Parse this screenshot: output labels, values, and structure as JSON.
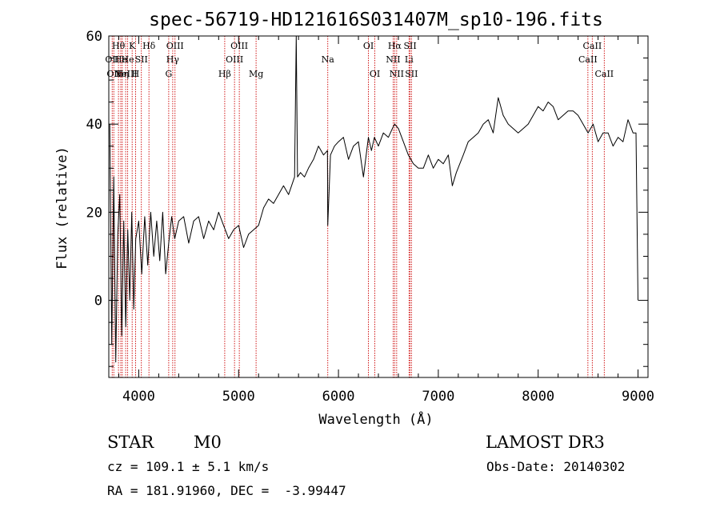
{
  "chart_data": {
    "type": "line",
    "title": "spec-56719-HD121616S031407M_sp10-196.fits",
    "xlabel": "Wavelength (Å)",
    "ylabel": "Flux (relative)",
    "xlim": [
      3700,
      9100
    ],
    "ylim": [
      -17.5,
      60
    ],
    "xticks": [
      {
        "value": 4000,
        "label": "4000"
      },
      {
        "value": 5000,
        "label": "5000"
      },
      {
        "value": 6000,
        "label": "6000"
      },
      {
        "value": 7000,
        "label": "7000"
      },
      {
        "value": 8000,
        "label": "8000"
      },
      {
        "value": 9000,
        "label": "9000"
      }
    ],
    "yticks": [
      {
        "value": 0,
        "label": "0"
      },
      {
        "value": 20,
        "label": "20"
      },
      {
        "value": 40,
        "label": "40"
      },
      {
        "value": 60,
        "label": "60"
      }
    ],
    "grid": false,
    "series": [
      {
        "name": "flux",
        "color": "#000000",
        "x": [
          3710,
          3730,
          3750,
          3770,
          3790,
          3810,
          3830,
          3850,
          3870,
          3890,
          3910,
          3930,
          3950,
          3970,
          4000,
          4030,
          4060,
          4090,
          4120,
          4150,
          4180,
          4210,
          4240,
          4270,
          4300,
          4330,
          4360,
          4400,
          4450,
          4500,
          4550,
          4600,
          4650,
          4700,
          4750,
          4800,
          4850,
          4900,
          4950,
          5000,
          5050,
          5100,
          5150,
          5200,
          5250,
          5300,
          5350,
          5400,
          5450,
          5500,
          5560,
          5577,
          5590,
          5620,
          5660,
          5700,
          5750,
          5800,
          5850,
          5890,
          5893,
          5920,
          5960,
          6000,
          6050,
          6100,
          6150,
          6200,
          6250,
          6300,
          6330,
          6360,
          6400,
          6450,
          6500,
          6540,
          6563,
          6600,
          6650,
          6700,
          6750,
          6800,
          6850,
          6900,
          6950,
          7000,
          7050,
          7100,
          7140,
          7180,
          7250,
          7300,
          7350,
          7400,
          7450,
          7500,
          7550,
          7600,
          7650,
          7700,
          7750,
          7800,
          7850,
          7900,
          7950,
          8000,
          8050,
          8100,
          8150,
          8200,
          8250,
          8300,
          8350,
          8400,
          8450,
          8500,
          8550,
          8600,
          8650,
          8700,
          8750,
          8800,
          8850,
          8900,
          8950,
          8980,
          9000
        ],
        "values": [
          40,
          -10,
          28,
          -14,
          15,
          24,
          -8,
          18,
          -6,
          16,
          0,
          20,
          -2,
          14,
          18,
          6,
          19,
          8,
          20,
          10,
          18,
          9,
          20,
          6,
          13,
          19,
          14,
          18,
          19,
          13,
          18,
          19,
          14,
          18,
          16,
          20,
          17,
          14,
          16,
          17,
          12,
          15,
          16,
          17,
          21,
          23,
          22,
          24,
          26,
          24,
          28,
          60,
          28,
          29,
          28,
          30,
          32,
          35,
          33,
          34,
          17,
          33,
          35,
          36,
          37,
          32,
          35,
          36,
          28,
          37,
          34,
          37,
          35,
          38,
          37,
          39,
          40,
          39,
          36,
          33,
          31,
          30,
          30,
          33,
          30,
          32,
          31,
          33,
          26,
          29,
          33,
          36,
          37,
          38,
          40,
          41,
          38,
          46,
          42,
          40,
          39,
          38,
          39,
          40,
          42,
          44,
          43,
          45,
          44,
          41,
          42,
          43,
          43,
          42,
          40,
          38,
          40,
          36,
          38,
          38,
          35,
          37,
          36,
          41,
          38,
          38,
          0
        ]
      }
    ],
    "line_label_color": "#cc0000",
    "lines": [
      {
        "wl": 3734,
        "text": "OII",
        "row": 2
      },
      {
        "wl": 3750,
        "text": "OII",
        "row": 3
      },
      {
        "wl": 3797,
        "text": "Hθ",
        "row": 1
      },
      {
        "wl": 3820,
        "text": "He",
        "row": 2
      },
      {
        "wl": 3835,
        "text": "Hη",
        "row": 3
      },
      {
        "wl": 3869,
        "text": "NeIII",
        "row": 3
      },
      {
        "wl": 3889,
        "text": "He",
        "row": 2
      },
      {
        "wl": 3934,
        "text": "K",
        "row": 1
      },
      {
        "wl": 3968,
        "text": "H",
        "row": 3
      },
      {
        "wl": 4026,
        "text": "SII",
        "row": 2
      },
      {
        "wl": 4102,
        "text": "Hδ",
        "row": 1
      },
      {
        "wl": 4300,
        "text": "G",
        "row": 3
      },
      {
        "wl": 4340,
        "text": "Hγ",
        "row": 2
      },
      {
        "wl": 4363,
        "text": "OIII",
        "row": 1
      },
      {
        "wl": 4861,
        "text": "Hβ",
        "row": 3
      },
      {
        "wl": 4959,
        "text": "OIII",
        "row": 2
      },
      {
        "wl": 5007,
        "text": "OIII",
        "row": 1
      },
      {
        "wl": 5175,
        "text": "Mg",
        "row": 3
      },
      {
        "wl": 5893,
        "text": "Na",
        "row": 2
      },
      {
        "wl": 6300,
        "text": "OI",
        "row": 1
      },
      {
        "wl": 6364,
        "text": "OI",
        "row": 3
      },
      {
        "wl": 6548,
        "text": "NII",
        "row": 2
      },
      {
        "wl": 6563,
        "text": "Hα",
        "row": 1
      },
      {
        "wl": 6583,
        "text": "NII",
        "row": 3
      },
      {
        "wl": 6707,
        "text": "Li",
        "row": 2
      },
      {
        "wl": 6717,
        "text": "SII",
        "row": 1
      },
      {
        "wl": 6731,
        "text": "SII",
        "row": 3
      },
      {
        "wl": 8498,
        "text": "CaII",
        "row": 2
      },
      {
        "wl": 8542,
        "text": "CaII",
        "row": 1
      },
      {
        "wl": 8662,
        "text": "CaII",
        "row": 3
      }
    ]
  },
  "info": {
    "class": "STAR",
    "subclass": "M0",
    "survey": "LAMOST DR3",
    "cz": "cz = 109.1 ± 5.1 km/s",
    "obs_date": "Obs-Date: 20140302",
    "coords": "RA = 181.91960, DEC =  -3.99447"
  }
}
